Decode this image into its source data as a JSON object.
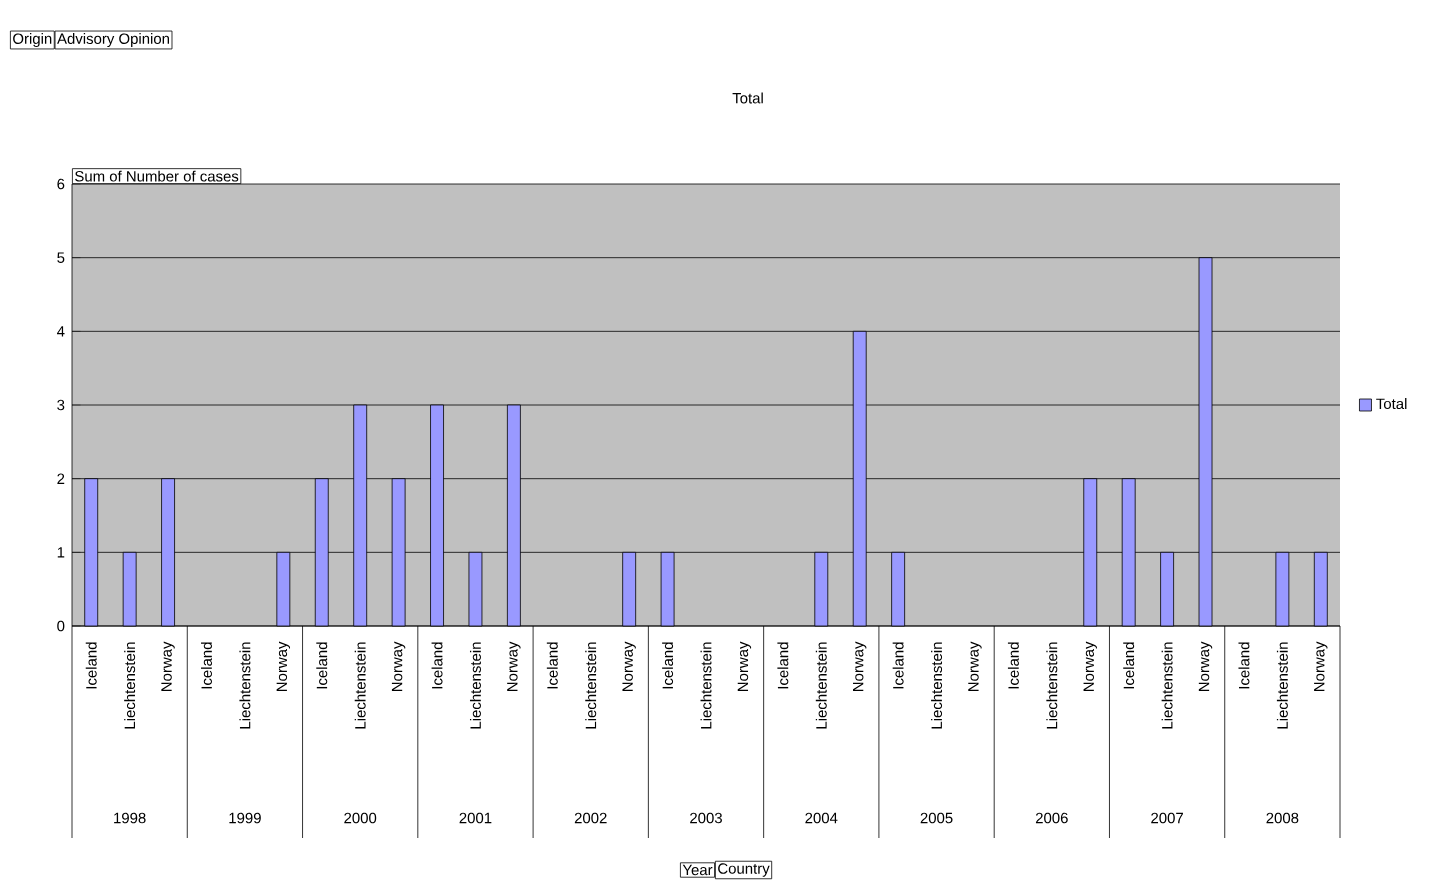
{
  "chart_data": {
    "type": "bar",
    "title": "Total",
    "categories": [
      "Iceland",
      "Liechtenstein",
      "Norway",
      "Iceland",
      "Liechtenstein",
      "Norway",
      "Iceland",
      "Liechtenstein",
      "Norway",
      "Iceland",
      "Liechtenstein",
      "Norway",
      "Iceland",
      "Liechtenstein",
      "Norway",
      "Iceland",
      "Liechtenstein",
      "Norway",
      "Iceland",
      "Liechtenstein",
      "Norway",
      "Iceland",
      "Liechtenstein",
      "Norway",
      "Iceland",
      "Liechtenstein",
      "Norway",
      "Iceland",
      "Liechtenstein",
      "Norway",
      "Iceland",
      "Liechtenstein",
      "Norway"
    ],
    "series": [
      {
        "name": "Total",
        "color": "#9999ff",
        "values": [
          2,
          1,
          2,
          null,
          null,
          1,
          2,
          3,
          2,
          3,
          1,
          3,
          null,
          null,
          1,
          1,
          null,
          null,
          null,
          1,
          4,
          1,
          null,
          null,
          null,
          null,
          2,
          2,
          1,
          5,
          null,
          1,
          1
        ]
      }
    ],
    "annotations": [
      "Origin",
      "Advisory Opinion",
      "Sum of Number of cases",
      "1998",
      "1999",
      "2000",
      "2001",
      "2002",
      "2003",
      "2004",
      "2005",
      "2006",
      "2007",
      "2008",
      "Year",
      "Country"
    ],
    "ylim": [
      0,
      6
    ],
    "yticks": [
      0,
      1,
      2,
      3,
      4,
      5,
      6
    ],
    "grid": "y",
    "legend": "right"
  }
}
